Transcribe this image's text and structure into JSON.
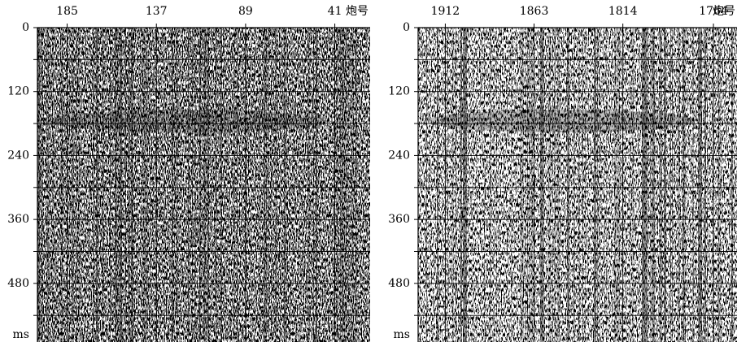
{
  "chart_data": [
    {
      "type": "seismic",
      "xlabel": "炮号",
      "ylabel": "ms",
      "xlim": [
        201,
        22
      ],
      "xticks": [
        185,
        137,
        89,
        41
      ],
      "ylim": [
        0,
        590
      ],
      "yticks": [
        0,
        120,
        240,
        360,
        480
      ],
      "minor_yticks": [
        60,
        180,
        300,
        420,
        540
      ],
      "grid": true
    },
    {
      "type": "seismic",
      "xlabel": "炮号",
      "ylabel": "ms",
      "xlim": [
        1927,
        1751
      ],
      "xticks": [
        1912,
        1863,
        1814,
        1764
      ],
      "ylim": [
        0,
        590
      ],
      "yticks": [
        0,
        120,
        240,
        360,
        480
      ],
      "minor_yticks": [
        60,
        180,
        300,
        420,
        540
      ],
      "grid": true
    }
  ]
}
